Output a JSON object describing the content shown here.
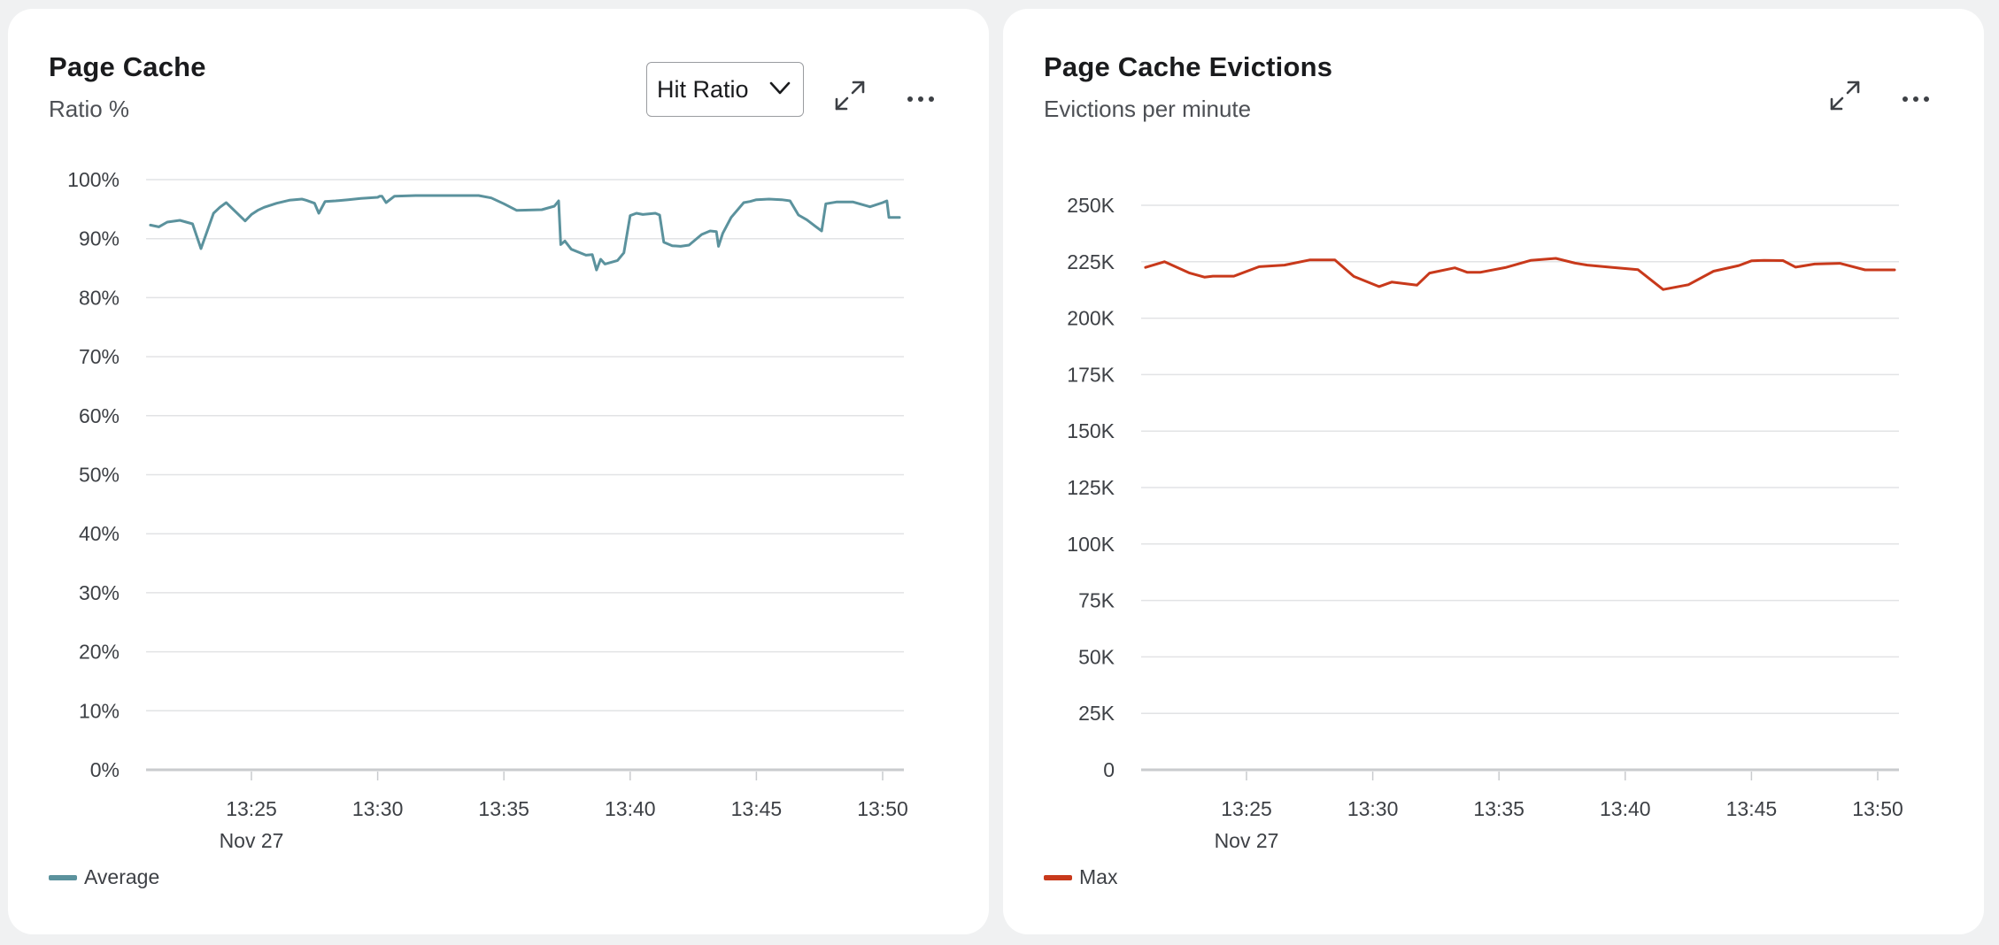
{
  "panels": [
    {
      "title": "Page Cache",
      "subtitle": "Ratio %",
      "select_value": "Hit Ratio",
      "legend_label": "Average",
      "color": "#5b929d",
      "icons": [
        "expand-icon",
        "more-icon"
      ]
    },
    {
      "title": "Page Cache Evictions",
      "subtitle": "Evictions per minute",
      "legend_label": "Max",
      "color": "#c8391b",
      "icons": [
        "expand-icon",
        "more-icon"
      ]
    }
  ],
  "chart_data": [
    {
      "type": "line",
      "title": "Page Cache",
      "subtitle": "Ratio %",
      "y_ticks": [
        "0%",
        "10%",
        "20%",
        "30%",
        "40%",
        "50%",
        "60%",
        "70%",
        "80%",
        "90%",
        "100%"
      ],
      "ylim": [
        0,
        100
      ],
      "x_ticks": [
        "13:25",
        "13:30",
        "13:35",
        "13:40",
        "13:45",
        "13:50"
      ],
      "x_date_label": "Nov 27",
      "xlim": [
        "13:21:00",
        "13:50:40"
      ],
      "grid": true,
      "legend_placement": "bottom-left",
      "series": [
        {
          "name": "Average",
          "color": "#5b929d",
          "x": [
            "13:21:00",
            "13:21:20",
            "13:21:40",
            "13:22:10",
            "13:22:40",
            "13:23:00",
            "13:23:30",
            "13:23:45",
            "13:24:00",
            "13:24:45",
            "13:25:00",
            "13:25:15",
            "13:25:30",
            "13:26:00",
            "13:26:30",
            "13:27:00",
            "13:27:10",
            "13:27:30",
            "13:27:40",
            "13:27:55",
            "13:28:20",
            "13:28:50",
            "13:29:20",
            "13:30:00",
            "13:30:05",
            "13:30:10",
            "13:30:20",
            "13:30:40",
            "13:31:30",
            "13:32:30",
            "13:33:30",
            "13:34:00",
            "13:34:30",
            "13:35:00",
            "13:35:30",
            "13:36:30",
            "13:37:00",
            "13:37:10",
            "13:37:15",
            "13:37:25",
            "13:37:40",
            "13:38:15",
            "13:38:30",
            "13:38:40",
            "13:38:50",
            "13:39:00",
            "13:39:30",
            "13:39:45",
            "13:40:00",
            "13:40:15",
            "13:40:30",
            "13:41:00",
            "13:41:10",
            "13:41:20",
            "13:41:40",
            "13:42:00",
            "13:42:20",
            "13:42:50",
            "13:43:10",
            "13:43:25",
            "13:43:30",
            "13:43:40",
            "13:44:00",
            "13:44:30",
            "13:44:45",
            "13:45:00",
            "13:45:30",
            "13:46:00",
            "13:46:20",
            "13:46:40",
            "13:47:00",
            "13:47:20",
            "13:47:35",
            "13:47:45",
            "13:48:10",
            "13:48:50",
            "13:49:30",
            "13:50:00",
            "13:50:10",
            "13:50:15",
            "13:50:40"
          ],
          "y": [
            92.3,
            92.0,
            92.8,
            93.1,
            92.5,
            88.3,
            94.3,
            95.3,
            96.1,
            93.0,
            94.1,
            94.8,
            95.3,
            96.0,
            96.5,
            96.7,
            96.5,
            96.0,
            94.3,
            96.3,
            96.4,
            96.6,
            96.8,
            97.0,
            97.2,
            97.2,
            96.1,
            97.2,
            97.3,
            97.3,
            97.3,
            97.3,
            96.9,
            95.9,
            94.8,
            94.9,
            95.5,
            96.4,
            89.0,
            89.6,
            88.2,
            87.2,
            87.3,
            84.7,
            86.5,
            85.7,
            86.3,
            87.6,
            93.9,
            94.3,
            94.1,
            94.3,
            94.0,
            89.4,
            88.8,
            88.7,
            88.9,
            90.7,
            91.3,
            91.2,
            88.7,
            90.9,
            93.6,
            96.1,
            96.3,
            96.6,
            96.7,
            96.6,
            96.4,
            94.0,
            93.2,
            92.1,
            91.3,
            95.9,
            96.2,
            96.2,
            95.4,
            96.1,
            96.4,
            93.6,
            93.6
          ]
        }
      ]
    },
    {
      "type": "line",
      "title": "Page Cache Evictions",
      "subtitle": "Evictions per minute",
      "y_ticks": [
        "0",
        "25K",
        "50K",
        "75K",
        "100K",
        "125K",
        "150K",
        "175K",
        "200K",
        "225K",
        "250K"
      ],
      "ylim": [
        0,
        250000
      ],
      "x_ticks": [
        "13:25",
        "13:30",
        "13:35",
        "13:40",
        "13:45",
        "13:50"
      ],
      "x_date_label": "Nov 27",
      "xlim": [
        "13:21:00",
        "13:50:40"
      ],
      "grid": true,
      "legend_placement": "bottom-left",
      "series": [
        {
          "name": "Max",
          "color": "#c8391b",
          "x": [
            "13:21:00",
            "13:21:45",
            "13:22:45",
            "13:23:20",
            "13:23:40",
            "13:24:30",
            "13:25:30",
            "13:26:30",
            "13:27:30",
            "13:28:30",
            "13:29:15",
            "13:30:15",
            "13:30:45",
            "13:31:45",
            "13:32:15",
            "13:33:15",
            "13:33:45",
            "13:34:15",
            "13:35:15",
            "13:36:15",
            "13:37:15",
            "13:38:00",
            "13:38:30",
            "13:39:30",
            "13:40:30",
            "13:41:30",
            "13:42:30",
            "13:43:30",
            "13:44:30",
            "13:45:00",
            "13:45:30",
            "13:46:15",
            "13:46:45",
            "13:47:30",
            "13:48:30",
            "13:49:30",
            "13:50:40"
          ],
          "y": [
            222500,
            225000,
            220000,
            218200,
            218600,
            218600,
            222800,
            223500,
            225800,
            225800,
            218500,
            214000,
            216000,
            214600,
            220000,
            222300,
            220300,
            220300,
            222400,
            225600,
            226500,
            224400,
            223500,
            222500,
            221500,
            212700,
            214800,
            220800,
            223300,
            225400,
            225600,
            225500,
            222600,
            224000,
            224300,
            221400,
            221400
          ]
        }
      ]
    }
  ]
}
